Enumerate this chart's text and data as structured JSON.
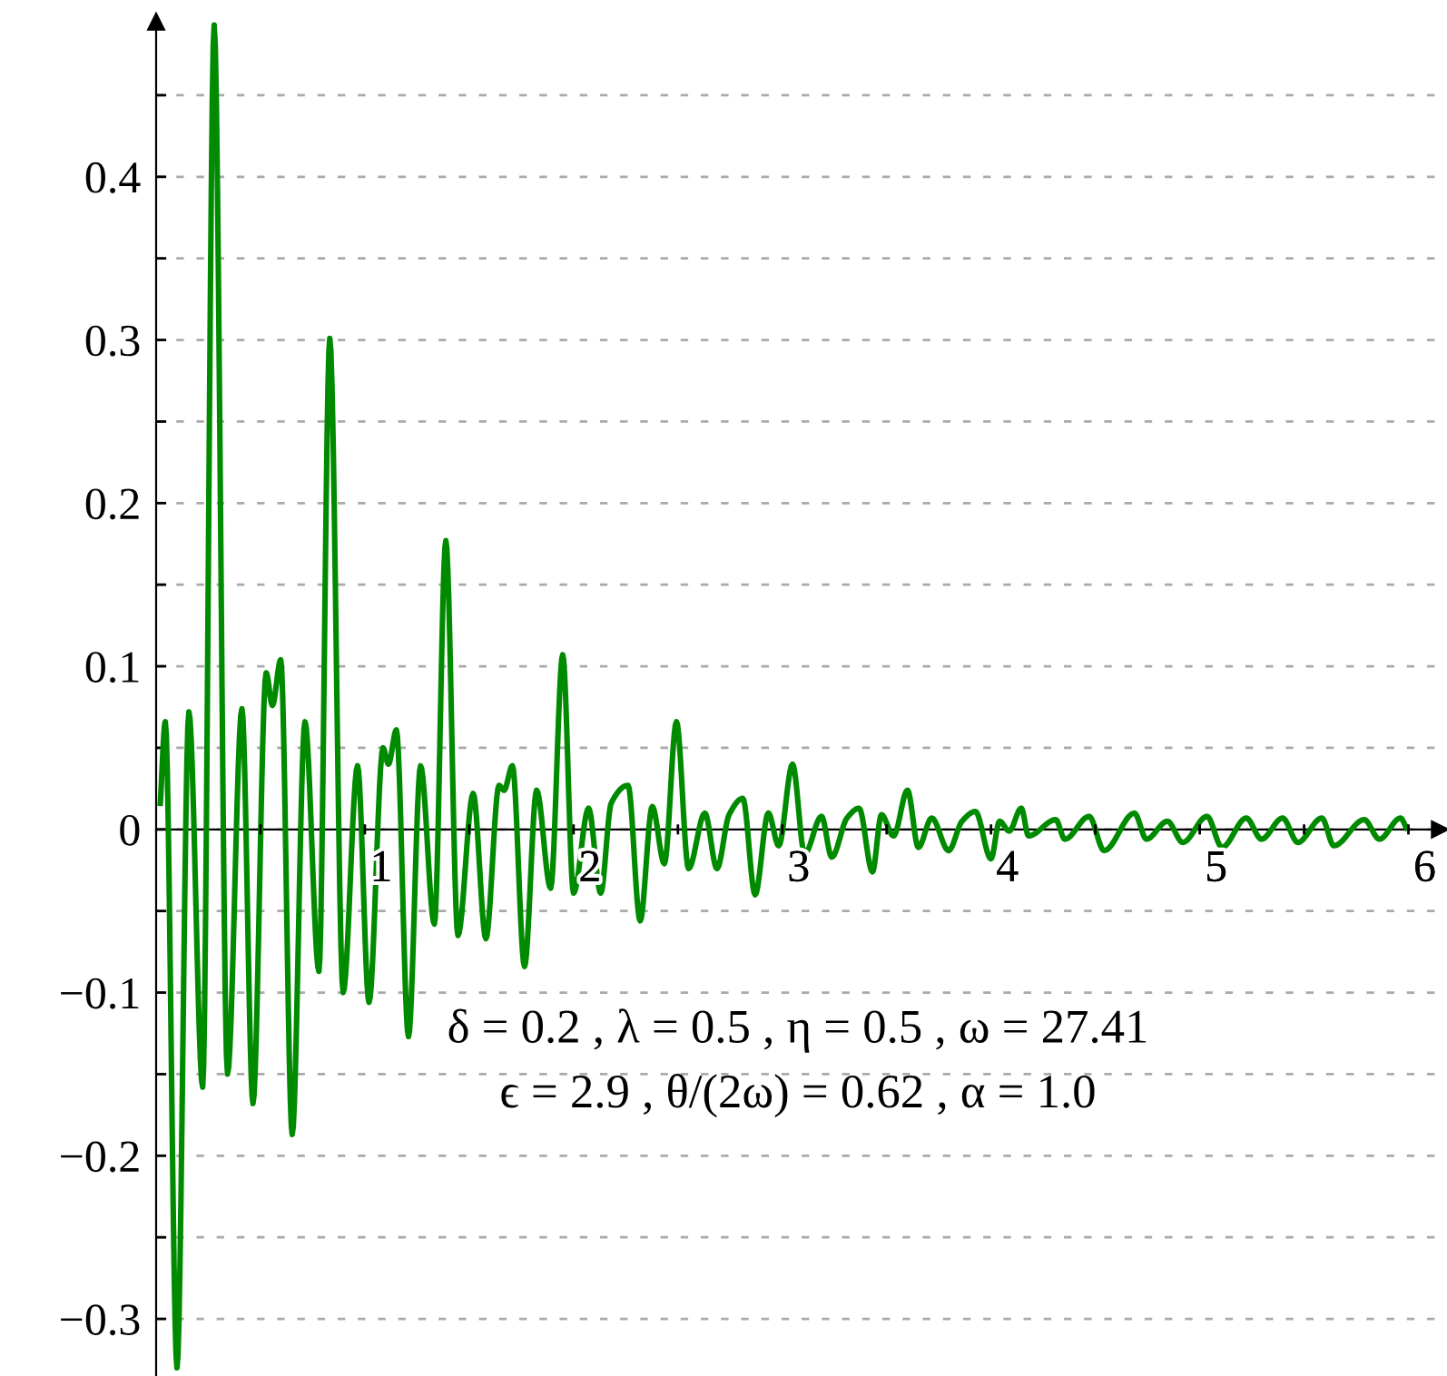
{
  "chart_data": {
    "type": "line",
    "x": [
      0.02,
      0.044,
      0.1,
      0.157,
      0.223,
      0.278,
      0.342,
      0.411,
      0.464,
      0.527,
      0.557,
      0.597,
      0.652,
      0.713,
      0.78,
      0.832,
      0.896,
      0.965,
      1.02,
      1.087,
      1.113,
      1.151,
      1.209,
      1.267,
      1.333,
      1.388,
      1.446,
      1.519,
      1.58,
      1.643,
      1.667,
      1.707,
      1.765,
      1.823,
      1.89,
      1.948,
      2.0,
      2.072,
      2.13,
      2.18,
      2.261,
      2.319,
      2.377,
      2.435,
      2.493,
      2.551,
      2.629,
      2.687,
      2.745,
      2.811,
      2.87,
      2.933,
      2.983,
      3.049,
      3.107,
      3.188,
      3.237,
      3.31,
      3.368,
      3.432,
      3.475,
      3.533,
      3.6,
      3.652,
      3.716,
      3.797,
      3.861,
      3.925,
      4.0,
      4.041,
      4.087,
      4.145,
      4.18,
      4.31,
      4.354,
      4.47,
      4.542,
      4.687,
      4.745,
      4.845,
      4.919,
      5.035,
      5.107,
      5.223,
      5.296,
      5.397,
      5.47,
      5.585,
      5.643,
      5.788,
      5.861,
      5.962,
      5.99
    ],
    "series": [
      {
        "color": "#008a00",
        "values": [
          0.016,
          0.066,
          -0.33,
          0.072,
          -0.158,
          0.493,
          -0.15,
          0.074,
          -0.168,
          0.096,
          0.076,
          0.104,
          -0.187,
          0.066,
          -0.087,
          0.301,
          -0.1,
          0.039,
          -0.106,
          0.05,
          0.04,
          0.061,
          -0.127,
          0.039,
          -0.058,
          0.177,
          -0.065,
          0.022,
          -0.067,
          0.027,
          0.024,
          0.039,
          -0.084,
          0.024,
          -0.036,
          0.107,
          -0.039,
          0.013,
          -0.039,
          0.016,
          0.027,
          -0.056,
          0.014,
          -0.021,
          0.066,
          -0.024,
          0.01,
          -0.024,
          0.009,
          0.019,
          -0.04,
          0.01,
          -0.01,
          0.04,
          -0.015,
          0.008,
          -0.017,
          0.007,
          0.013,
          -0.026,
          0.009,
          -0.004,
          0.024,
          -0.011,
          0.007,
          -0.013,
          0.005,
          0.011,
          -0.018,
          0.005,
          -0.001,
          0.013,
          -0.004,
          0.006,
          -0.006,
          0.008,
          -0.013,
          0.01,
          -0.006,
          0.005,
          -0.008,
          0.008,
          -0.011,
          0.007,
          -0.006,
          0.007,
          -0.008,
          0.007,
          -0.01,
          0.006,
          -0.006,
          0.007,
          0.001
        ]
      }
    ],
    "xlim": [
      0,
      6.15
    ],
    "ylim": [
      -0.335,
      0.495
    ],
    "xticks": [
      {
        "value": 0.5,
        "label": null
      },
      1,
      {
        "value": 1.5,
        "label": null
      },
      2,
      {
        "value": 2.5,
        "label": null
      },
      3,
      {
        "value": 3.5,
        "label": null
      },
      4,
      {
        "value": 4.5,
        "label": null
      },
      5,
      {
        "value": 5.5,
        "label": null
      },
      6
    ],
    "yticks": [
      {
        "value": -0.3,
        "label": "−0.3"
      },
      {
        "value": -0.25,
        "label": null
      },
      {
        "value": -0.2,
        "label": "−0.2"
      },
      {
        "value": -0.15,
        "label": null
      },
      {
        "value": -0.1,
        "label": "−0.1"
      },
      {
        "value": -0.05,
        "label": null
      },
      0,
      {
        "value": 0.05,
        "label": null
      },
      0.1,
      {
        "value": 0.15,
        "label": null
      },
      0.2,
      {
        "value": 0.25,
        "label": null
      },
      0.3,
      {
        "value": 0.35,
        "label": null
      },
      0.4,
      {
        "value": 0.45,
        "label": null
      }
    ],
    "grid": "y",
    "line_style": "solid",
    "annotations": [
      "δ = 0.2 , λ = 0.5 , η = 0.5 , ω = 27.41",
      "ϵ = 2.9 , θ/(2ω) = 0.62 , α = 1.0"
    ]
  }
}
